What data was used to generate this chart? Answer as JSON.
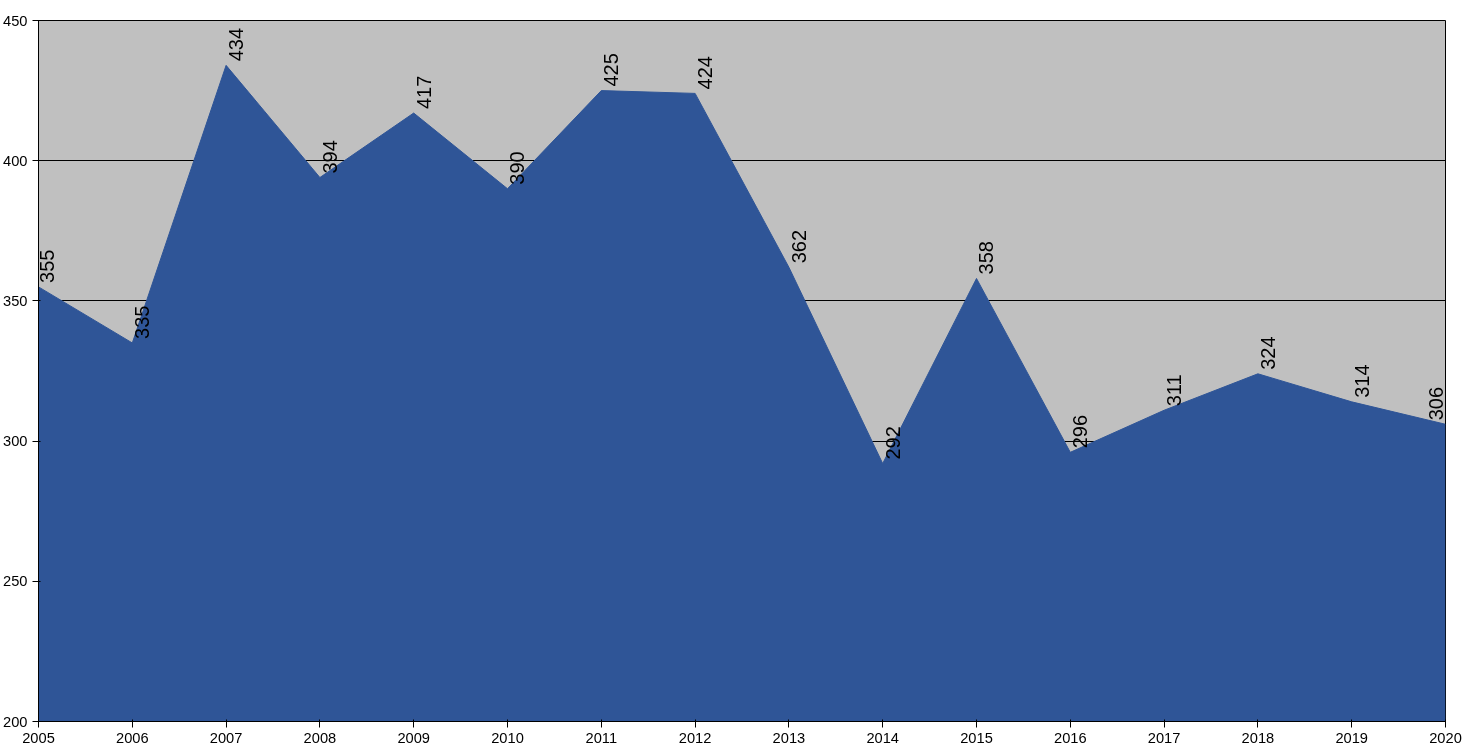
{
  "chart_data": {
    "type": "area",
    "x": [
      2005,
      2006,
      2007,
      2008,
      2009,
      2010,
      2011,
      2012,
      2013,
      2014,
      2015,
      2016,
      2017,
      2018,
      2019,
      2020
    ],
    "series": [
      {
        "color": "#2f5597",
        "values": [
          355,
          335,
          434,
          394,
          417,
          390,
          425,
          424,
          362,
          292,
          358,
          296,
          311,
          324,
          314,
          306
        ]
      }
    ],
    "xlim": [
      2005,
      2020
    ],
    "xticks": [
      2005,
      2006,
      2007,
      2008,
      2009,
      2010,
      2011,
      2012,
      2013,
      2014,
      2015,
      2016,
      2017,
      2018,
      2019,
      2020
    ],
    "ylim": [
      200,
      450
    ],
    "yticks": [
      200,
      250,
      300,
      350,
      400,
      450
    ],
    "grid": "y",
    "data_labels": true
  }
}
